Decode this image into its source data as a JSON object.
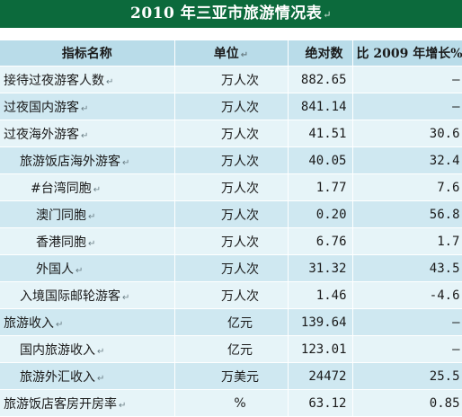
{
  "title": "2010 年三亚市旅游情况表",
  "paragraph_mark": "↵",
  "header": {
    "name": "指标名称",
    "unit": "单位",
    "absolute": "绝对数",
    "growth": "比 2009 年增长%"
  },
  "rows": [
    {
      "name": "接待过夜游客人数",
      "unit": "万人次",
      "value": "882.65",
      "growth": "—",
      "level": 0
    },
    {
      "name": "过夜国内游客",
      "unit": "万人次",
      "value": "841.14",
      "growth": "—",
      "level": 0
    },
    {
      "name": "过夜海外游客",
      "unit": "万人次",
      "value": "41.51",
      "growth": "30.6",
      "level": 0
    },
    {
      "name": "旅游饭店海外游客",
      "unit": "万人次",
      "value": "40.05",
      "growth": "32.4",
      "level": 1
    },
    {
      "name": "#台湾同胞",
      "unit": "万人次",
      "value": "1.77",
      "growth": "7.6",
      "level": 3
    },
    {
      "name": "澳门同胞",
      "unit": "万人次",
      "value": "0.20",
      "growth": "56.8",
      "level": 2
    },
    {
      "name": "香港同胞",
      "unit": "万人次",
      "value": "6.76",
      "growth": "1.7",
      "level": 2
    },
    {
      "name": "外国人",
      "unit": "万人次",
      "value": "31.32",
      "growth": "43.5",
      "level": 2
    },
    {
      "name": "入境国际邮轮游客",
      "unit": "万人次",
      "value": "1.46",
      "growth": "-4.6",
      "level": 1
    },
    {
      "name": "旅游收入",
      "unit": "亿元",
      "value": "139.64",
      "growth": "—",
      "level": 0
    },
    {
      "name": "国内旅游收入",
      "unit": "亿元",
      "value": "123.01",
      "growth": "—",
      "level": 1
    },
    {
      "name": "旅游外汇收入",
      "unit": "万美元",
      "value": "24472",
      "growth": "25.5",
      "level": 1
    },
    {
      "name": "旅游饭店客房开房率",
      "unit": "%",
      "value": "63.12",
      "growth": "0.85",
      "level": 0
    }
  ]
}
